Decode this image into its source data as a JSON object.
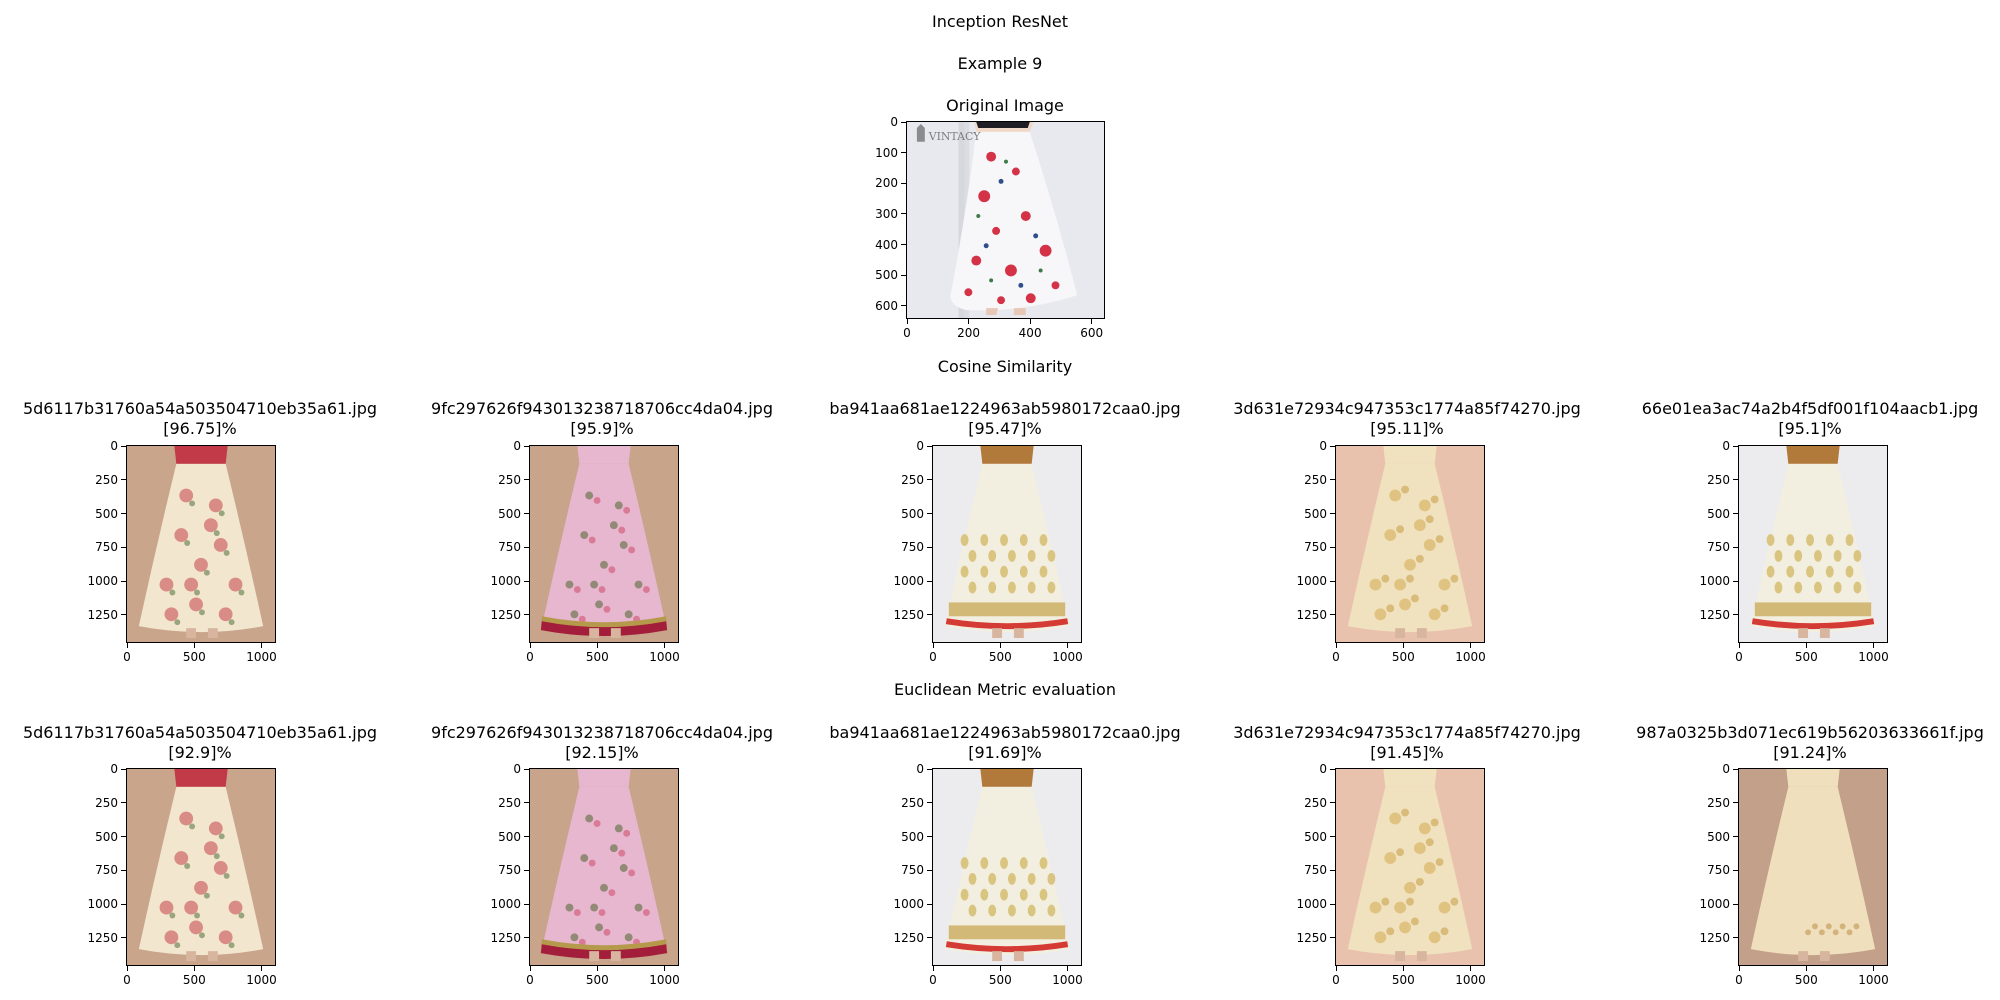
{
  "figure": {
    "title": "Inception ResNet",
    "subtitle": "Example 9"
  },
  "original": {
    "title": "Original Image",
    "watermark": "VINTACY",
    "x_ticks": [
      "0",
      "200",
      "400",
      "600"
    ],
    "y_ticks": [
      "0",
      "100",
      "200",
      "300",
      "400",
      "500",
      "600"
    ]
  },
  "cosine": {
    "title": "Cosine Similarity",
    "items": [
      {
        "filename": "5d6117b31760a54a503504710eb35a61.jpg",
        "score": "[96.75]%",
        "palette": "cream-red",
        "skirt_color": "#f3e6cf",
        "accent_color": "#c2414a",
        "top_color": "#c23a48"
      },
      {
        "filename": "9fc297626f943013238718706cc4da04.jpg",
        "score": "[95.9]%",
        "palette": "pink",
        "skirt_color": "#e6b7cf",
        "accent_color": "#a31e3a",
        "top_color": "#e6b7cf"
      },
      {
        "filename": "ba941aa681ae1224963ab5980172caa0.jpg",
        "score": "[95.47]%",
        "palette": "ivory-gold",
        "skirt_color": "#f2efe1",
        "accent_color": "#d43b35",
        "top_color": "#b27a3a"
      },
      {
        "filename": "3d631e72934c947353c1774a85f74270.jpg",
        "score": "[95.11]%",
        "palette": "cream-gold",
        "skirt_color": "#f1e2bf",
        "accent_color": "#d8b766",
        "top_color": "#f1e2bf"
      },
      {
        "filename": "66e01ea3ac74a2b4f5df001f104aacb1.jpg",
        "score": "[95.1]%",
        "palette": "ivory-gold",
        "skirt_color": "#f2efe1",
        "accent_color": "#d43b35",
        "top_color": "#b27a3a"
      }
    ]
  },
  "euclidean": {
    "title": "Euclidean Metric evaluation",
    "items": [
      {
        "filename": "5d6117b31760a54a503504710eb35a61.jpg",
        "score": "[92.9]%",
        "palette": "cream-red",
        "skirt_color": "#f3e6cf",
        "accent_color": "#c2414a",
        "top_color": "#c23a48"
      },
      {
        "filename": "9fc297626f943013238718706cc4da04.jpg",
        "score": "[92.15]%",
        "palette": "pink",
        "skirt_color": "#e6b7cf",
        "accent_color": "#a31e3a",
        "top_color": "#e6b7cf"
      },
      {
        "filename": "ba941aa681ae1224963ab5980172caa0.jpg",
        "score": "[91.69]%",
        "palette": "ivory-gold",
        "skirt_color": "#f2efe1",
        "accent_color": "#d43b35",
        "top_color": "#b27a3a"
      },
      {
        "filename": "3d631e72934c947353c1774a85f74270.jpg",
        "score": "[91.45]%",
        "palette": "cream-gold",
        "skirt_color": "#f1e2bf",
        "accent_color": "#d8b766",
        "top_color": "#f1e2bf"
      },
      {
        "filename": "987a0325b3d071ec619b56203633661f.jpg",
        "score": "[91.24]%",
        "palette": "beige-plain",
        "skirt_color": "#f0dfbd",
        "accent_color": "#d8c08c",
        "top_color": "#f0dfbd"
      }
    ]
  },
  "thumb_axes": {
    "x_ticks": [
      "0",
      "500",
      "1000"
    ],
    "y_ticks": [
      "0",
      "250",
      "500",
      "750",
      "1000",
      "1250"
    ]
  }
}
